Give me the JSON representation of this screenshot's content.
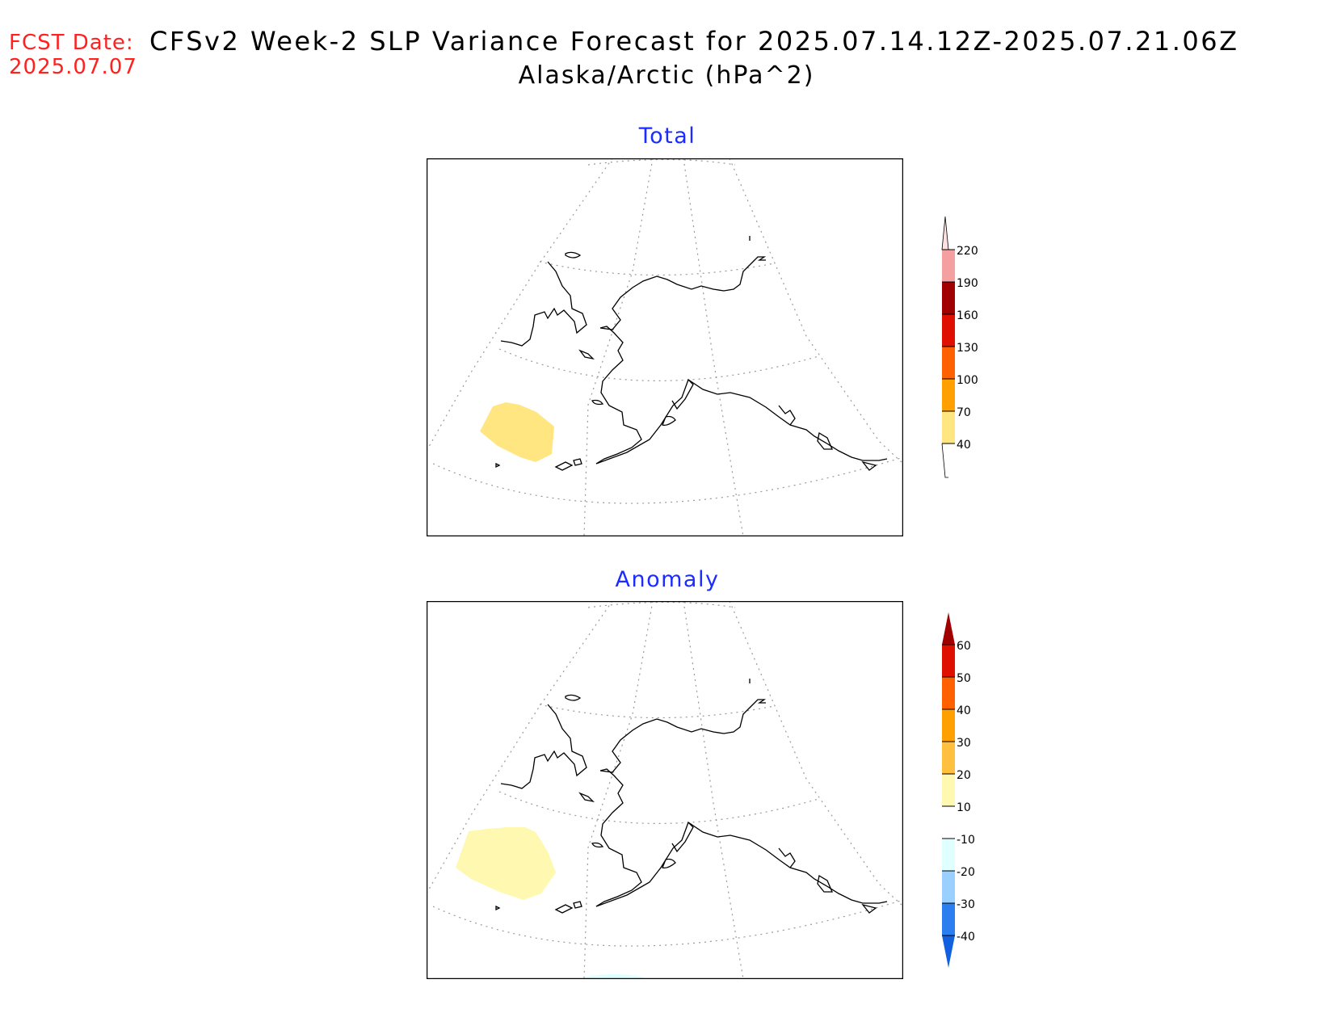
{
  "header": {
    "fcst_label": "FCST Date:",
    "fcst_date": "2025.07.07",
    "title": "CFSv2 Week-2 SLP Variance Forecast for 2025.07.14.12Z-2025.07.21.06Z",
    "subtitle": "Alaska/Arctic (hPa^2)"
  },
  "panels": [
    {
      "title": "Total",
      "colorbar": {
        "labels": [
          "220",
          "190",
          "160",
          "130",
          "100",
          "70",
          "40"
        ],
        "colors": [
          "#ffe0e0",
          "#f4a0a0",
          "#a00000",
          "#e01000",
          "#ff6000",
          "#ffa000",
          "#ffe680"
        ],
        "below_color": "#ffffff"
      },
      "features": [
        {
          "value_range": "40-70",
          "color": "#ffe680",
          "region": "Bering Sea / North Pacific"
        }
      ]
    },
    {
      "title": "Anomaly",
      "colorbar": {
        "labels": [
          "60",
          "50",
          "40",
          "30",
          "20",
          "10",
          "-10",
          "-20",
          "-30",
          "-40"
        ],
        "colors": [
          "#a00000",
          "#e01000",
          "#ff6000",
          "#ffa000",
          "#ffc040",
          "#fff8b0",
          "#ffffff",
          "#e0ffff",
          "#9ad0ff",
          "#2a7ef0",
          "#1060e0"
        ],
        "top_color": "#a00000",
        "bottom_color": "#1060e0"
      },
      "features": [
        {
          "value_range": "10-20",
          "color": "#fff8b0",
          "region": "Bering Sea / North Pacific"
        }
      ]
    }
  ]
}
